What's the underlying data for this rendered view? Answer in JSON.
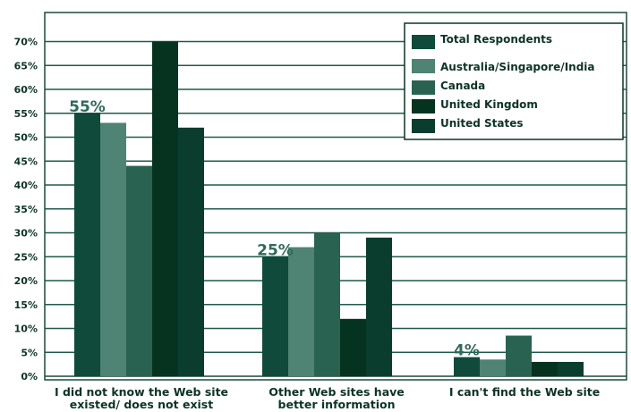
{
  "chart_data": {
    "type": "bar",
    "title": "",
    "xlabel": "",
    "ylabel": "",
    "ylim": [
      0,
      72
    ],
    "yticks": [
      0,
      5,
      10,
      15,
      20,
      25,
      30,
      35,
      40,
      45,
      50,
      55,
      60,
      65,
      70
    ],
    "ytick_labels": [
      "0%",
      "5%",
      "10%",
      "15%",
      "20%",
      "25%",
      "30%",
      "35%",
      "40%",
      "45%",
      "50%",
      "55%",
      "60%",
      "65%",
      "70%"
    ],
    "grid": true,
    "legend_position": "top-right",
    "categories": [
      [
        "I did not know the Web site",
        "existed/ does not exist"
      ],
      [
        "Other Web sites have",
        "better information"
      ],
      [
        "I can't find the Web site"
      ]
    ],
    "series": [
      {
        "name": "Total Respondents",
        "color": "#0f4a3a",
        "values": [
          55,
          25,
          4
        ]
      },
      {
        "name": "Australia/Singapore/India",
        "color": "#4f8373",
        "values": [
          53,
          27,
          3.5
        ]
      },
      {
        "name": "Canada",
        "color": "#2a6251",
        "values": [
          44,
          30,
          8.5
        ]
      },
      {
        "name": "United Kingdom",
        "color": "#06331f",
        "values": [
          70,
          12,
          3
        ]
      },
      {
        "name": "United States",
        "color": "#0a3d2e",
        "values": [
          52,
          29,
          3
        ]
      }
    ],
    "data_labels": [
      {
        "category": 0,
        "text": "55%"
      },
      {
        "category": 1,
        "text": "25%"
      },
      {
        "category": 2,
        "text": "4%"
      }
    ]
  }
}
